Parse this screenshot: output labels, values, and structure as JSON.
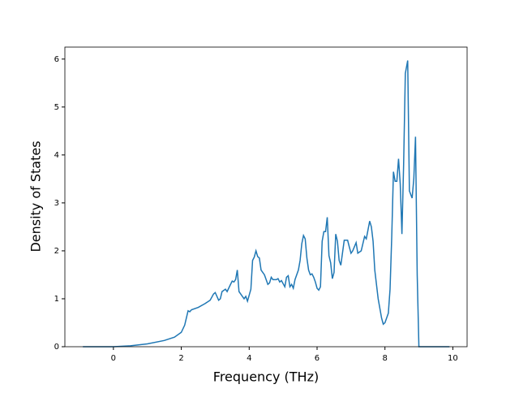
{
  "chart_data": {
    "type": "line",
    "xlabel": "Frequency (THz)",
    "ylabel": "Density of States",
    "xlim": [
      -1.43,
      10.42
    ],
    "ylim": [
      0,
      6.25
    ],
    "xticks": [
      0,
      2,
      4,
      6,
      8,
      10
    ],
    "yticks": [
      0,
      1,
      2,
      3,
      4,
      5,
      6
    ],
    "series": [
      {
        "color": "#1f77b4",
        "x": [
          -0.9,
          0,
          0.5,
          1,
          1.5,
          1.8,
          2.0,
          2.1,
          2.15,
          2.2,
          2.25,
          2.3,
          2.5,
          2.7,
          2.85,
          2.95,
          3.0,
          3.05,
          3.1,
          3.15,
          3.2,
          3.3,
          3.35,
          3.45,
          3.5,
          3.55,
          3.6,
          3.65,
          3.7,
          3.8,
          3.85,
          3.9,
          3.95,
          4.05,
          4.1,
          4.15,
          4.2,
          4.25,
          4.3,
          4.35,
          4.45,
          4.5,
          4.55,
          4.6,
          4.65,
          4.7,
          4.8,
          4.85,
          4.9,
          4.95,
          5.05,
          5.1,
          5.15,
          5.2,
          5.25,
          5.3,
          5.35,
          5.45,
          5.5,
          5.55,
          5.6,
          5.65,
          5.7,
          5.75,
          5.8,
          5.85,
          5.9,
          5.95,
          6.0,
          6.05,
          6.1,
          6.15,
          6.2,
          6.25,
          6.3,
          6.35,
          6.4,
          6.45,
          6.5,
          6.55,
          6.6,
          6.65,
          6.7,
          6.8,
          6.9,
          6.95,
          7.0,
          7.05,
          7.15,
          7.2,
          7.3,
          7.4,
          7.45,
          7.55,
          7.6,
          7.65,
          7.7,
          7.8,
          7.9,
          7.95,
          8.0,
          8.1,
          8.15,
          8.2,
          8.25,
          8.3,
          8.35,
          8.4,
          8.45,
          8.5,
          8.55,
          8.6,
          8.67,
          8.72,
          8.8,
          8.85,
          8.9,
          8.95,
          9.0,
          9.9
        ],
        "values": [
          0,
          0,
          0.02,
          0.06,
          0.13,
          0.2,
          0.3,
          0.45,
          0.6,
          0.75,
          0.73,
          0.77,
          0.82,
          0.9,
          0.97,
          1.1,
          1.13,
          1.05,
          0.97,
          1.0,
          1.15,
          1.2,
          1.15,
          1.3,
          1.37,
          1.35,
          1.4,
          1.6,
          1.15,
          1.05,
          1.0,
          1.05,
          0.95,
          1.2,
          1.8,
          1.87,
          2.0,
          1.88,
          1.85,
          1.6,
          1.5,
          1.4,
          1.3,
          1.33,
          1.45,
          1.4,
          1.4,
          1.42,
          1.35,
          1.38,
          1.25,
          1.45,
          1.48,
          1.25,
          1.3,
          1.22,
          1.4,
          1.6,
          1.8,
          2.15,
          2.32,
          2.25,
          1.85,
          1.6,
          1.5,
          1.52,
          1.45,
          1.35,
          1.22,
          1.18,
          1.25,
          2.2,
          2.4,
          2.4,
          2.7,
          1.9,
          1.75,
          1.42,
          1.55,
          2.35,
          2.2,
          1.8,
          1.7,
          2.22,
          2.22,
          2.08,
          1.95,
          2.0,
          2.17,
          1.95,
          2.0,
          2.3,
          2.25,
          2.62,
          2.5,
          2.2,
          1.6,
          1.0,
          0.6,
          0.47,
          0.5,
          0.7,
          1.2,
          2.3,
          3.65,
          3.45,
          3.45,
          3.92,
          3.4,
          2.35,
          3.8,
          5.7,
          5.97,
          3.25,
          3.1,
          3.5,
          4.38,
          1.5,
          0,
          0
        ]
      }
    ]
  }
}
